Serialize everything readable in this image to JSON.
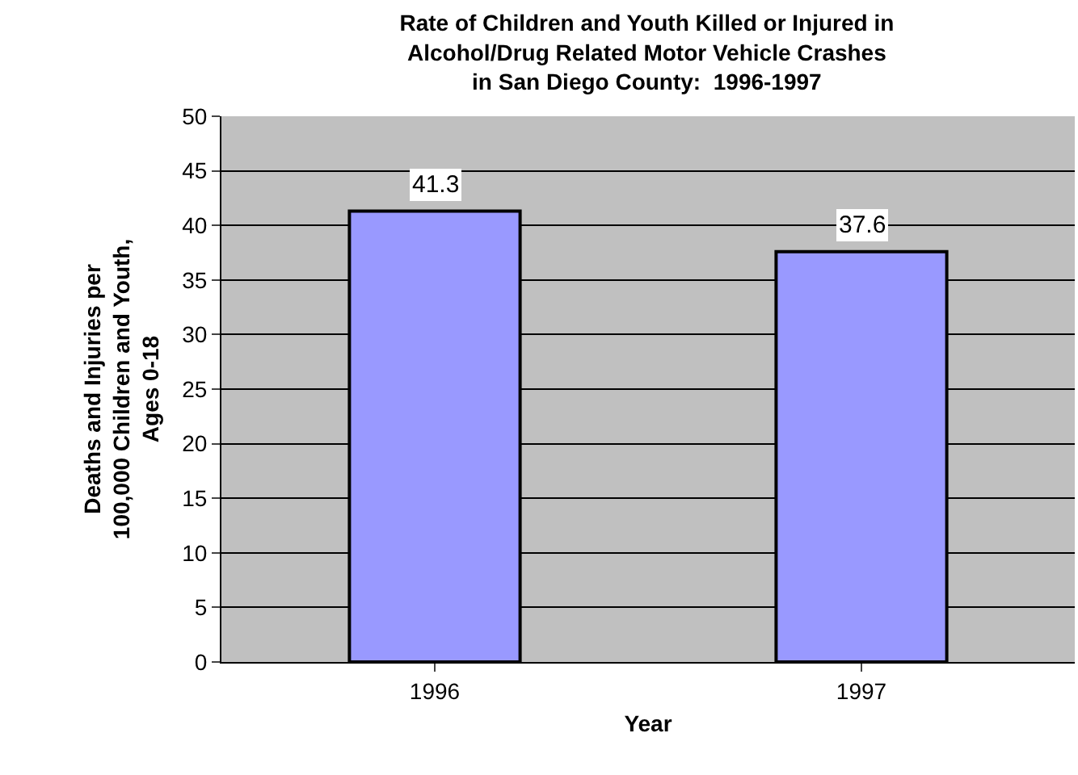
{
  "chart_data": {
    "type": "bar",
    "title": "Rate of Children and Youth Killed or Injured in\nAlcohol/Drug Related Motor Vehicle Crashes\nin San Diego County:  1996-1997",
    "xlabel": "Year",
    "ylabel": "Deaths and Injuries per\n100,000 Children and Youth,\nAges 0-18",
    "categories": [
      "1996",
      "1997"
    ],
    "values": [
      41.3,
      37.6
    ],
    "color": "#9999ff",
    "ylim": [
      0,
      50
    ],
    "yticks": [
      0,
      5,
      10,
      15,
      20,
      25,
      30,
      35,
      40,
      45,
      50
    ],
    "grid": "y",
    "data_labels": true,
    "legend": false
  }
}
